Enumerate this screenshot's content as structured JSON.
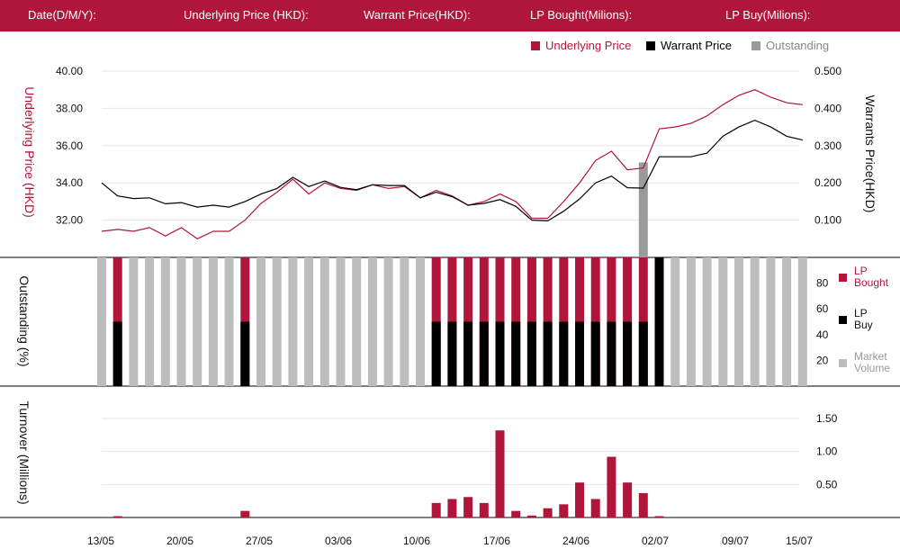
{
  "header": {
    "date_label": "Date(D/M/Y):",
    "underlying_label": "Underlying Price (HKD):",
    "warrant_label": "Warrant  Price(HKD):",
    "lp_bought_label": "LP Bought(Milions):",
    "lp_buy_label": "LP Buy(Milions):"
  },
  "colors": {
    "header": "#b0163a",
    "red": "#b0163a",
    "black": "#000000",
    "grey": "#bdbdbd",
    "darkgrey": "#9a9a9a"
  },
  "chart_data": [
    {
      "type": "line",
      "legend": [
        "Underlying Price",
        "Warrant  Price",
        "Outstanding"
      ],
      "ylabel_left": "Underlying Price (HKD)",
      "ylabel_right": "Warrants  Price(HKD)",
      "yticks_left": [
        "40.00",
        "38.00",
        "36.00",
        "34.00",
        "32.00"
      ],
      "yticks_right": [
        "0.500",
        "0.400",
        "0.300",
        "0.200",
        "0.100"
      ],
      "ylim_left": [
        30.0,
        40.0
      ],
      "ylim_right": [
        0.0,
        0.5
      ],
      "grid": true,
      "series": [
        {
          "name": "Underlying Price",
          "axis": "left",
          "values": [
            31.4,
            31.5,
            31.4,
            31.6,
            31.15,
            31.6,
            31.0,
            31.4,
            31.4,
            32.0,
            32.9,
            33.5,
            34.2,
            33.4,
            34.0,
            33.7,
            33.6,
            33.9,
            33.7,
            33.8,
            33.2,
            33.6,
            33.3,
            32.8,
            33.0,
            33.4,
            33.0,
            32.1,
            32.1,
            33.0,
            34.0,
            35.2,
            35.7,
            34.7,
            34.8,
            36.9,
            37.0,
            37.2,
            37.6,
            38.2,
            38.7,
            39.0,
            38.6,
            38.3,
            38.2
          ]
        },
        {
          "name": "Warrant  Price",
          "axis": "right",
          "values": [
            0.2,
            0.165,
            0.158,
            0.16,
            0.144,
            0.147,
            0.135,
            0.14,
            0.135,
            0.15,
            0.17,
            0.185,
            0.215,
            0.19,
            0.205,
            0.188,
            0.182,
            0.195,
            0.193,
            0.193,
            0.16,
            0.175,
            0.163,
            0.14,
            0.145,
            0.155,
            0.137,
            0.1,
            0.098,
            0.124,
            0.157,
            0.2,
            0.218,
            0.187,
            0.186,
            0.27,
            0.27,
            0.27,
            0.28,
            0.325,
            0.35,
            0.368,
            0.35,
            0.325,
            0.315
          ]
        },
        {
          "name": "Outstanding",
          "type": "bar",
          "index": 34,
          "value_right_axis": 0.255
        }
      ]
    },
    {
      "type": "bar",
      "stacked": true,
      "ylabel": "Outstanding (%)",
      "yticks": [
        "80",
        "60",
        "40",
        "20"
      ],
      "ylim": [
        0,
        100
      ],
      "legend": [
        "LP Bought",
        "LP Buy",
        "Market Volume"
      ],
      "lp_bought_percent": [
        0,
        100,
        0,
        0,
        0,
        0,
        0,
        0,
        0,
        100,
        0,
        0,
        0,
        0,
        0,
        0,
        0,
        0,
        0,
        0,
        0,
        100,
        100,
        100,
        100,
        100,
        100,
        100,
        100,
        100,
        100,
        100,
        100,
        100,
        100,
        0,
        0,
        0,
        0,
        0,
        0,
        0,
        0,
        0,
        0
      ],
      "lp_buy_percent": [
        0,
        50,
        0,
        0,
        0,
        0,
        0,
        0,
        0,
        50,
        0,
        0,
        0,
        0,
        0,
        0,
        0,
        0,
        0,
        0,
        0,
        50,
        50,
        50,
        50,
        50,
        50,
        50,
        50,
        50,
        50,
        50,
        50,
        50,
        50,
        100,
        0,
        0,
        0,
        0,
        0,
        0,
        0,
        0,
        0
      ],
      "market_volume_percent": [
        100,
        0,
        100,
        100,
        100,
        100,
        100,
        100,
        100,
        0,
        100,
        100,
        100,
        100,
        100,
        100,
        100,
        100,
        100,
        100,
        100,
        0,
        0,
        0,
        0,
        0,
        0,
        0,
        0,
        0,
        0,
        0,
        0,
        0,
        0,
        0,
        100,
        100,
        100,
        100,
        100,
        100,
        100,
        100,
        100
      ]
    },
    {
      "type": "bar",
      "ylabel": "Turnover (Millions)",
      "yticks": [
        "1.50",
        "1.00",
        "0.50"
      ],
      "ylim": [
        0,
        1.5
      ],
      "values": [
        0,
        0.02,
        0,
        0,
        0,
        0,
        0,
        0,
        0,
        0.1,
        0,
        0,
        0,
        0,
        0,
        0,
        0,
        0,
        0,
        0,
        0,
        0.22,
        0.28,
        0.31,
        0.22,
        1.32,
        0.1,
        0.03,
        0.14,
        0.2,
        0.53,
        0.28,
        0.92,
        0.53,
        0.37,
        0.02,
        0,
        0,
        0,
        0,
        0,
        0,
        0,
        0,
        0
      ],
      "xticks": [
        "13/05",
        "20/05",
        "27/05",
        "03/06",
        "10/06",
        "17/06",
        "24/06",
        "02/07",
        "09/07",
        "15/07"
      ]
    }
  ]
}
